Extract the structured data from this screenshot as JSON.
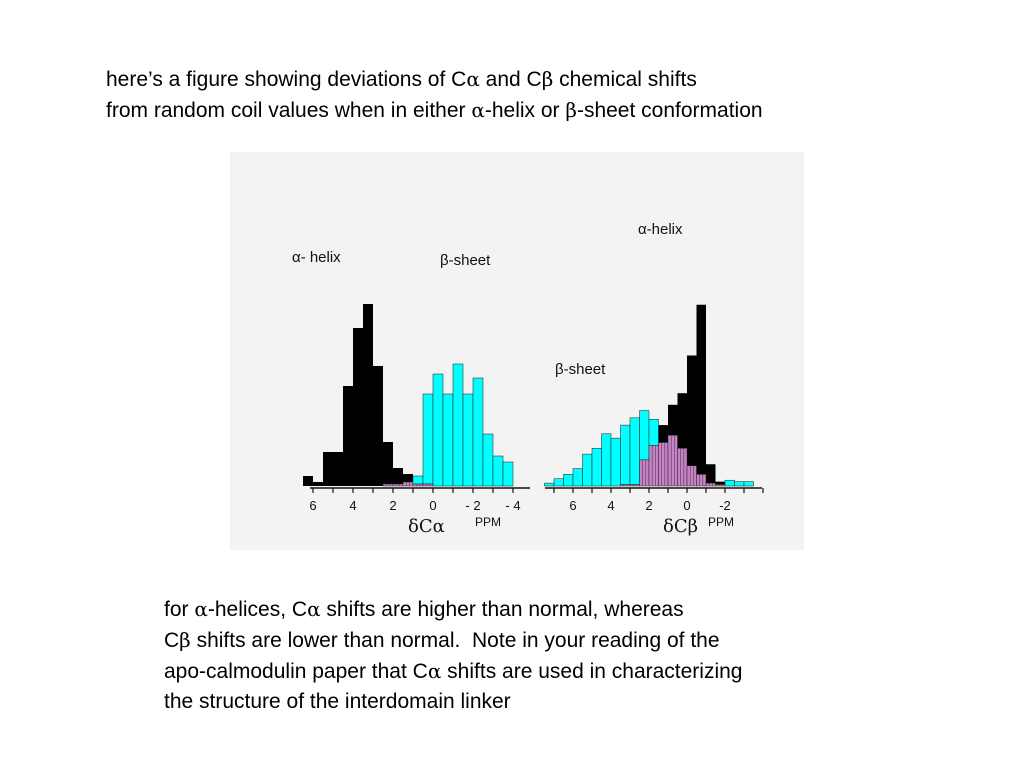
{
  "caption_top": {
    "lines": [
      [
        "here’s a figure showing deviations of C",
        {
          "g": "α"
        },
        " and C",
        {
          "g": "β"
        },
        " chemical shifts"
      ],
      [
        "from random coil values when in either ",
        {
          "g": "α"
        },
        "-helix or ",
        {
          "g": "β"
        },
        "-sheet conformation"
      ]
    ]
  },
  "caption_bottom": {
    "lines": [
      [
        "for ",
        {
          "g": "α"
        },
        "-helices, C",
        {
          "g": "α"
        },
        " shifts are higher than normal, whereas"
      ],
      [
        "C",
        {
          "g": "β"
        },
        " shifts are lower than normal.  Note in your reading of the"
      ],
      [
        "apo-calmodulin paper that C",
        {
          "g": "α"
        },
        " shifts are used in characterizing"
      ],
      [
        "the structure of the interdomain linker"
      ]
    ]
  },
  "colors": {
    "helix": "#000000",
    "sheet": "#00ffff",
    "overlap": "#c882c8",
    "panel": "#f3f3f3"
  },
  "chart_data": [
    {
      "type": "bar",
      "xlabel": "δCα",
      "unit_label": "PPM",
      "x_ticks": [
        6,
        4,
        2,
        0,
        -2,
        -4
      ],
      "x_tick_labels": [
        "6",
        "4",
        "2",
        "0",
        "- 2",
        "- 4"
      ],
      "xlim": [
        6.2,
        -4.5
      ],
      "bin_width": 0.5,
      "series": [
        {
          "name": "α- helix",
          "bins_start": [
            6.0,
            5.5,
            5.0,
            4.5,
            4.0,
            3.5,
            3.0,
            2.5,
            2.0,
            1.5,
            1.0,
            0.5,
            0.0
          ],
          "values": [
            5,
            2,
            17,
            17,
            50,
            79,
            91,
            60,
            22,
            9,
            6,
            1,
            1
          ]
        },
        {
          "name": "β-sheet",
          "bins_start": [
            2.0,
            1.5,
            1.0,
            0.5,
            0.0,
            -0.5,
            -1.0,
            -1.5,
            -2.0,
            -2.5,
            -3.0,
            -3.5,
            -4.0
          ],
          "values": [
            1,
            1,
            2,
            5,
            46,
            56,
            46,
            61,
            46,
            54,
            26,
            15,
            12
          ]
        }
      ]
    },
    {
      "type": "bar",
      "xlabel": "δCβ",
      "unit_label": "PPM",
      "x_ticks": [
        6,
        4,
        2,
        0,
        -2
      ],
      "x_tick_labels": [
        "6",
        "4",
        "2",
        "0",
        "-2"
      ],
      "xlim": [
        7.2,
        -4.0
      ],
      "bin_width": 0.5,
      "series": [
        {
          "name": "α-helix",
          "bins_start": [
            3.0,
            2.5,
            2.0,
            1.5,
            1.0,
            0.5,
            0.0,
            -0.5,
            -1.0,
            -1.5,
            -2.0
          ],
          "values": [
            1,
            1,
            18,
            28,
            42,
            56,
            64,
            90,
            125,
            15,
            3
          ]
        },
        {
          "name": "β-sheet",
          "bins_start": [
            7.0,
            6.5,
            6.0,
            5.5,
            5.0,
            4.5,
            4.0,
            3.5,
            3.0,
            2.5,
            2.0,
            1.5,
            1.0,
            0.5,
            0.0,
            -0.5,
            -1.0,
            -1.5,
            -2.0,
            -2.5,
            -3.0,
            -3.5
          ],
          "values": [
            2,
            5,
            8,
            12,
            22,
            26,
            36,
            33,
            42,
            47,
            52,
            46,
            30,
            35,
            26,
            14,
            8,
            2,
            1,
            4,
            3,
            3
          ]
        }
      ]
    }
  ]
}
